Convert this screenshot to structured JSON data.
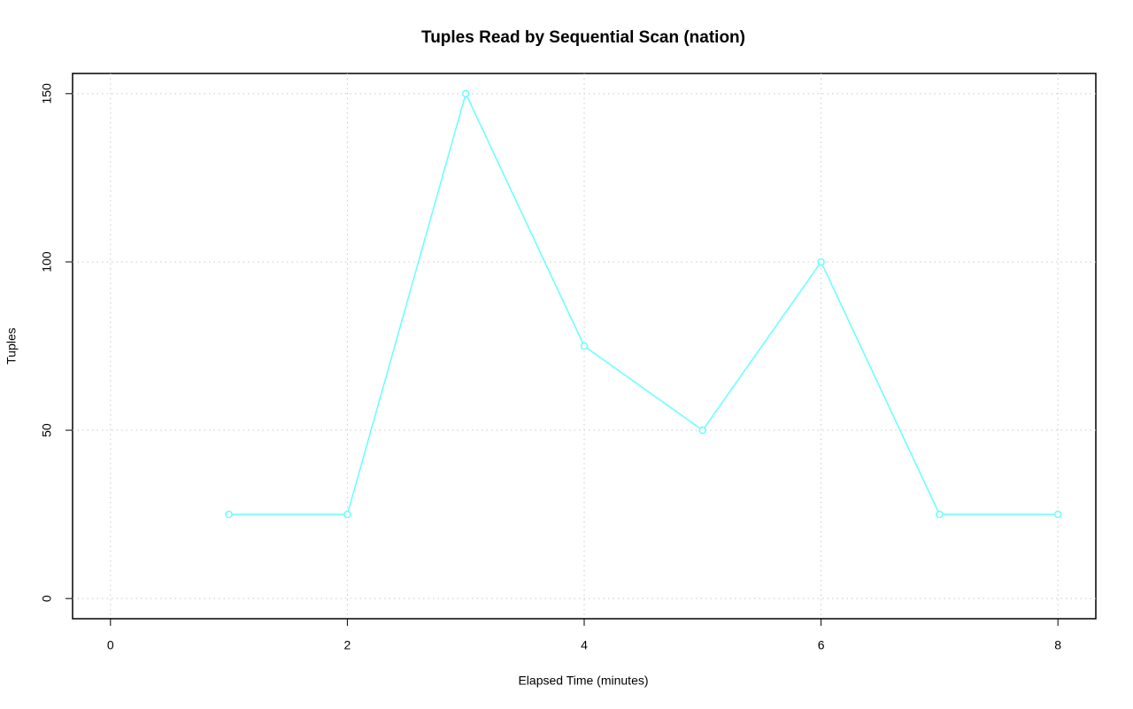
{
  "chart_data": {
    "type": "line",
    "title": "Tuples Read by Sequential Scan (nation)",
    "x_label": "Elapsed Time (minutes)",
    "y_label": "Tuples",
    "x": [
      1,
      2,
      3,
      4,
      5,
      6,
      7,
      8
    ],
    "series": [
      {
        "name": "nation",
        "color": "#66ffff",
        "values": [
          25,
          25,
          150,
          75,
          50,
          100,
          25,
          25
        ]
      }
    ],
    "xlim": [
      -0.32,
      8.32
    ],
    "xticks": [
      0,
      2,
      4,
      6,
      8
    ],
    "ylim": [
      -6,
      156
    ],
    "yticks": [
      0,
      50,
      100,
      150
    ],
    "grid": true
  }
}
